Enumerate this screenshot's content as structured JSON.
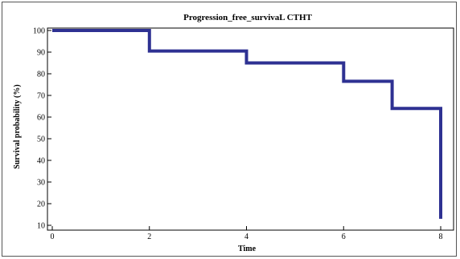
{
  "chart_data": {
    "type": "line",
    "step": true,
    "title": "Progression_free_survivaL CTHT",
    "xlabel": "Time",
    "ylabel": "Survival probability (%)",
    "xlim": [
      0,
      8
    ],
    "ylim": [
      10,
      100
    ],
    "x_ticks": [
      0,
      2,
      4,
      6,
      8
    ],
    "y_ticks": [
      10,
      20,
      30,
      40,
      50,
      60,
      70,
      80,
      90,
      100
    ],
    "grid": false,
    "legend": "none",
    "series": [
      {
        "color": "#2e3192",
        "points": [
          {
            "x": 0,
            "y": 100
          },
          {
            "x": 2,
            "y": 100
          },
          {
            "x": 2,
            "y": 90.5
          },
          {
            "x": 4,
            "y": 90.5
          },
          {
            "x": 4,
            "y": 85
          },
          {
            "x": 6,
            "y": 85
          },
          {
            "x": 6,
            "y": 76.5
          },
          {
            "x": 7,
            "y": 76.5
          },
          {
            "x": 7,
            "y": 64
          },
          {
            "x": 8,
            "y": 64
          },
          {
            "x": 8,
            "y": 13
          }
        ]
      }
    ]
  }
}
